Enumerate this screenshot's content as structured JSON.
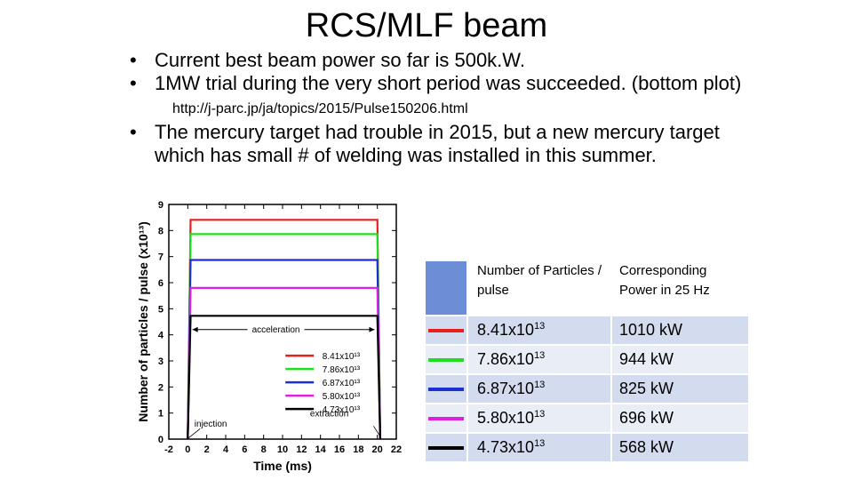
{
  "slide": {
    "title": "RCS/MLF beam",
    "bullets": [
      {
        "text": "Current best beam power so far is 500k.W."
      },
      {
        "text": "1MW trial during the very short period was succeeded. (bottom plot)",
        "link": "http://j-parc.jp/ja/topics/2015/Pulse150206.html"
      },
      {
        "text": "The mercury target had trouble in 2015, but a new mercury target which has small # of welding was installed in this summer."
      }
    ]
  },
  "chart_data": {
    "type": "line",
    "xlabel": "Time (ms)",
    "ylabel": "Number of particles / pulse (x10¹³)",
    "xlim": [
      -2,
      22
    ],
    "ylim": [
      0,
      9
    ],
    "x_ticks": [
      "-2",
      "0",
      "2",
      "4",
      "6",
      "8",
      "10",
      "12",
      "14",
      "16",
      "18",
      "20",
      "22"
    ],
    "y_ticks": [
      "0",
      "1",
      "2",
      "3",
      "4",
      "5",
      "6",
      "7",
      "8",
      "9"
    ],
    "series": [
      {
        "name": "8.41x10¹³",
        "color": "#e8201c",
        "x": [
          0,
          0.3,
          20,
          20.3
        ],
        "y": [
          0,
          8.41,
          8.41,
          0
        ]
      },
      {
        "name": "7.86x10¹³",
        "color": "#1fdd1f",
        "x": [
          0,
          0.3,
          20,
          20.3
        ],
        "y": [
          0,
          7.86,
          7.86,
          0
        ]
      },
      {
        "name": "6.87x10¹³",
        "color": "#1c2fd0",
        "x": [
          0,
          0.3,
          20,
          20.3
        ],
        "y": [
          0,
          6.87,
          6.87,
          0
        ]
      },
      {
        "name": "5.80x10¹³",
        "color": "#e020e0",
        "x": [
          0,
          0.3,
          20,
          20.3
        ],
        "y": [
          0,
          5.8,
          5.8,
          0
        ]
      },
      {
        "name": "4.73x10¹³",
        "color": "#000000",
        "x": [
          0,
          0.3,
          20,
          20.3
        ],
        "y": [
          0,
          4.73,
          4.73,
          0
        ]
      }
    ],
    "annotations": [
      "acceleration",
      "injection",
      "extraction"
    ],
    "legend_position": "center-right"
  },
  "table": {
    "headers": [
      "",
      "Number of Particles / pulse",
      "Corresponding Power in 25 Hz"
    ],
    "rows": [
      {
        "color": "#e8201c",
        "particles": "8.41x10",
        "exp": "13",
        "power": "1010 kW"
      },
      {
        "color": "#1fdd1f",
        "particles": "7.86x10",
        "exp": "13",
        "power": "944 kW"
      },
      {
        "color": "#1c2fd0",
        "particles": "6.87x10",
        "exp": "13",
        "power": "825 kW"
      },
      {
        "color": "#e020e0",
        "particles": "5.80x10",
        "exp": "13",
        "power": "696 kW"
      },
      {
        "color": "#000000",
        "particles": "4.73x10",
        "exp": "13",
        "power": "568 kW"
      }
    ]
  }
}
